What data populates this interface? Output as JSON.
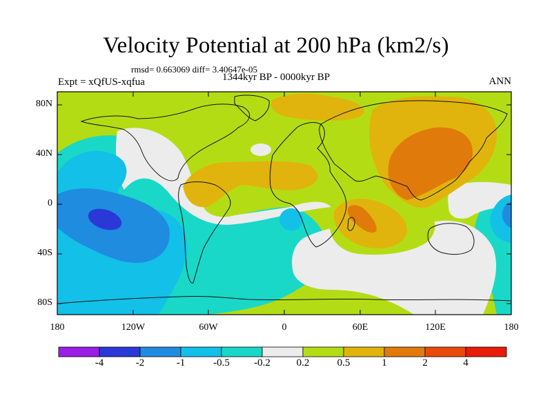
{
  "title": "Velocity Potential at 200 hPa (km2/s)",
  "stats": "rmsd= 0.663069 diff= 3.40647e-05",
  "period": "1344kyr BP - 0000kyr BP",
  "experiment": "Expt = xQfUS-xqfua",
  "season": "ANN",
  "lat_ticks": [
    "80N",
    "40N",
    "0",
    "40S",
    "80S"
  ],
  "lon_ticks": [
    "180",
    "120W",
    "60W",
    "0",
    "60E",
    "120E",
    "180"
  ],
  "colorbar": {
    "labels": [
      "-4",
      "-2",
      "-1",
      "-0.5",
      "-0.2",
      "0.2",
      "0.5",
      "1",
      "2",
      "4"
    ],
    "colors": [
      "#9a1ee6",
      "#2a38d8",
      "#1f8ce0",
      "#13c0e8",
      "#19d8c8",
      "#ececec",
      "#b4dc14",
      "#e0b40c",
      "#e07a0a",
      "#e84a0a",
      "#e81a0a"
    ]
  },
  "field_colors": {
    "band_neg2": "#2a38d8",
    "band_neg1": "#1f8ce0",
    "band_neg05": "#13c0e8",
    "band_neg02": "#19d8c8",
    "band_zero": "#ececec",
    "band_pos02": "#b4dc14",
    "band_pos05": "#e0b40c",
    "band_pos1": "#e07a0a"
  }
}
